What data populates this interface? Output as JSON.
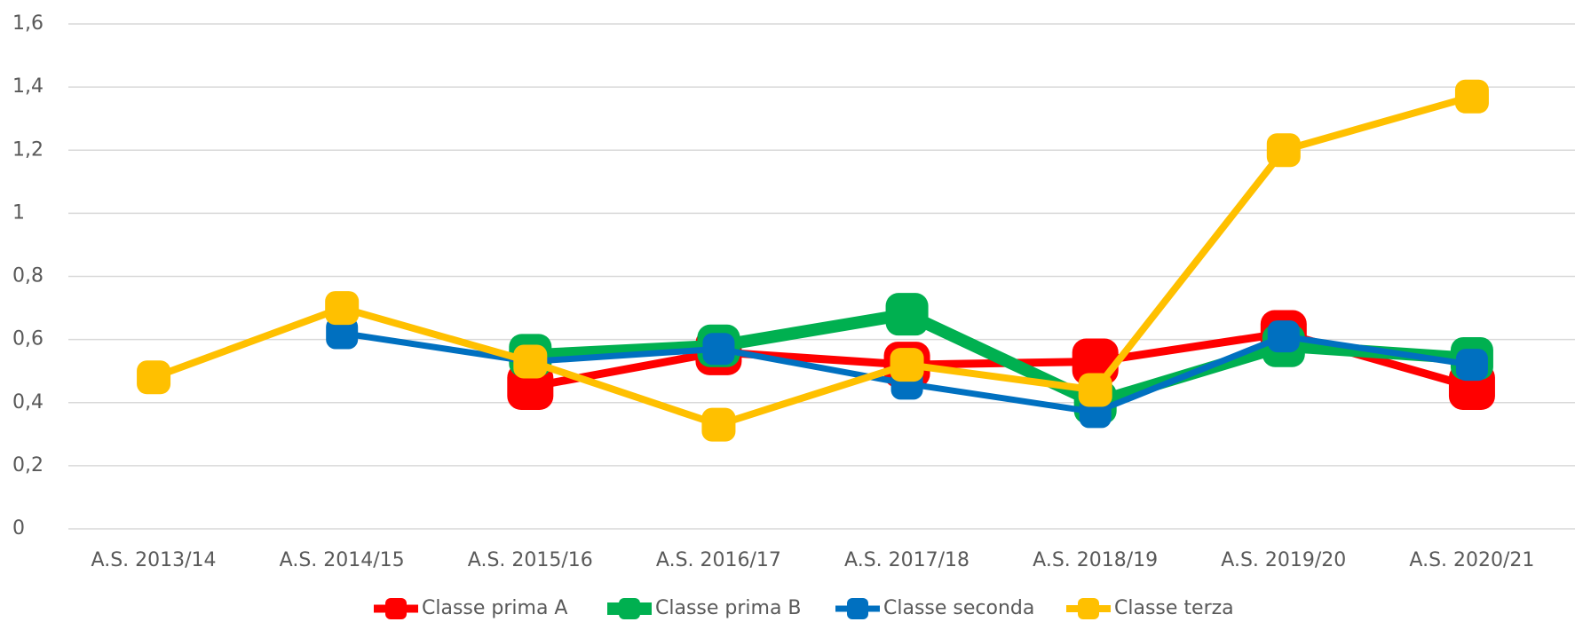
{
  "chart_data": {
    "type": "line",
    "categories": [
      "A.S. 2013/14",
      "A.S. 2014/15",
      "A.S. 2015/16",
      "A.S. 2016/17",
      "A.S. 2017/18",
      "A.S. 2018/19",
      "A.S. 2019/20",
      "A.S. 2020/21"
    ],
    "series": [
      {
        "name": "Classe prima A",
        "color": "#ff0000",
        "values": [
          null,
          null,
          0.45,
          0.56,
          0.52,
          0.53,
          0.62,
          0.45
        ]
      },
      {
        "name": "Classe prima B",
        "color": "#00b050",
        "values": [
          null,
          null,
          0.55,
          0.58,
          0.68,
          0.4,
          0.58,
          0.54
        ]
      },
      {
        "name": "Classe seconda",
        "color": "#0070c0",
        "values": [
          null,
          0.62,
          0.53,
          0.57,
          0.46,
          0.37,
          0.61,
          0.52
        ]
      },
      {
        "name": "Classe terza",
        "color": "#ffc000",
        "values": [
          0.48,
          0.7,
          0.53,
          0.33,
          0.52,
          0.44,
          1.2,
          1.37
        ]
      }
    ],
    "ylim": [
      0,
      1.6
    ],
    "yticks": [
      0,
      {
        "value": 0.2,
        "label": "0,2"
      },
      {
        "value": 0.4,
        "label": "0,4"
      },
      {
        "value": 0.6,
        "label": "0,6"
      },
      {
        "value": 0.8,
        "label": "0,8"
      },
      1,
      {
        "value": 1.2,
        "label": "1,2"
      },
      {
        "value": 1.4,
        "label": "1,4"
      },
      {
        "value": 1.6,
        "label": "1,6"
      }
    ],
    "grid": true,
    "legend": "bottom"
  }
}
